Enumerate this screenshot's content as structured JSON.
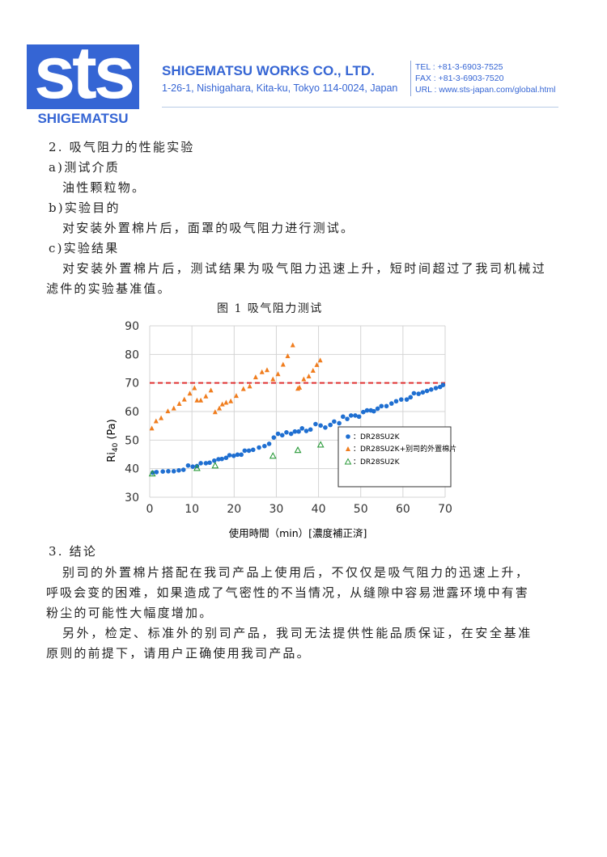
{
  "header": {
    "logo_text": "sts",
    "logo_name": "SHIGEMATSU",
    "company": "SHIGEMATSU WORKS CO., LTD.",
    "address": "1-26-1, Nishigahara, Kita-ku, Tokyo 114-0024, Japan",
    "tel": "TEL : +81-3-6903-7525",
    "fax": "FAX : +81-3-6903-7520",
    "url": "URL : www.sts-japan.com/global.html",
    "brand_color": "#3565d4"
  },
  "body": {
    "lines": [
      "2. 吸气阻力的性能实验",
      "a)测试介质",
      "油性颗粒物。",
      "b)实验目的",
      "对安装外置棉片后，面罩的吸气阻力进行测试。",
      "c)实验结果",
      "对安装外置棉片后，测试结果为吸气阻力迅速上升，短时间超过了我司机械过",
      "滤件的实验基准值。"
    ],
    "figure_caption": "图 1  吸气阻力测试",
    "conclusion_lines": [
      "3. 结论",
      "别司的外置棉片搭配在我司产品上使用后，不仅仅是吸气阻力的迅速上升，",
      "呼吸会变的困难，如果造成了气密性的不当情况，从缝隙中容易泄露环境中有害",
      "粉尘的可能性大幅度增加。",
      "另外，检定、标准外的别司产品，我司无法提供性能品质保证，在安全基准",
      "原则的前提下，请用户正确使用我司产品。"
    ]
  },
  "chart_data": {
    "type": "scatter",
    "title": "图 1  吸气阻力测试",
    "xlabel": "使用時間（min）[濃度補正済]",
    "ylabel": "Ri",
    "ylabel_sub": "40",
    "ylabel_unit": "(Pa)",
    "xlim": [
      0,
      70
    ],
    "ylim": [
      30,
      90
    ],
    "xticks": [
      0,
      10,
      20,
      30,
      40,
      50,
      60,
      70
    ],
    "yticks": [
      30,
      40,
      50,
      60,
      70,
      80,
      90
    ],
    "grid": true,
    "legend_position": "bottom-right",
    "reference_line": {
      "y": 70,
      "color": "#e03030",
      "style": "dashed"
    },
    "series": [
      {
        "name": "：DR28SU2K",
        "marker": "circle",
        "color": "#1f6fd1",
        "points": [
          [
            0.7,
            38.6
          ],
          [
            1.6,
            38.8
          ],
          [
            3.1,
            39
          ],
          [
            4.4,
            39.1
          ],
          [
            5.7,
            39.1
          ],
          [
            6.9,
            39.4
          ],
          [
            8,
            39.6
          ],
          [
            9.1,
            41.1
          ],
          [
            10.2,
            40.7
          ],
          [
            11.2,
            40.9
          ],
          [
            12.1,
            41.9
          ],
          [
            13.3,
            41.9
          ],
          [
            14.2,
            42.1
          ],
          [
            15.3,
            42.8
          ],
          [
            16.3,
            43.3
          ],
          [
            17.1,
            43.4
          ],
          [
            18.1,
            43.8
          ],
          [
            18.9,
            44.7
          ],
          [
            19.9,
            44.5
          ],
          [
            20.8,
            44.9
          ],
          [
            21.7,
            44.9
          ],
          [
            22.5,
            46.3
          ],
          [
            23.5,
            46.3
          ],
          [
            24.5,
            46.6
          ],
          [
            25.9,
            47.4
          ],
          [
            27.2,
            47.9
          ],
          [
            28.3,
            48.7
          ],
          [
            29.4,
            50.9
          ],
          [
            30.4,
            52.2
          ],
          [
            31.4,
            51.7
          ],
          [
            32.4,
            52.7
          ],
          [
            33.5,
            52.2
          ],
          [
            34.4,
            53
          ],
          [
            35.3,
            53
          ],
          [
            36.1,
            54.1
          ],
          [
            37.1,
            53.2
          ],
          [
            38.1,
            53.7
          ],
          [
            39.3,
            55.6
          ],
          [
            40.5,
            55.1
          ],
          [
            41.6,
            54.4
          ],
          [
            42.8,
            55.3
          ],
          [
            43.7,
            56.5
          ],
          [
            44.9,
            55.9
          ],
          [
            45.8,
            58.2
          ],
          [
            46.8,
            57.4
          ],
          [
            47.7,
            58.6
          ],
          [
            48.7,
            58.6
          ],
          [
            49.6,
            58.2
          ],
          [
            50.6,
            59.8
          ],
          [
            51.5,
            60.4
          ],
          [
            52.4,
            60.4
          ],
          [
            53.1,
            60.1
          ],
          [
            54,
            61
          ],
          [
            54.9,
            61.9
          ],
          [
            56.1,
            61.9
          ],
          [
            57.3,
            62.8
          ],
          [
            58.4,
            63.6
          ],
          [
            59.6,
            64.2
          ],
          [
            60.9,
            64.2
          ],
          [
            61.8,
            65
          ],
          [
            62.6,
            66.4
          ],
          [
            63.7,
            66.2
          ],
          [
            64.7,
            66.7
          ],
          [
            65.7,
            67.2
          ],
          [
            66.7,
            67.7
          ],
          [
            67.8,
            68.2
          ],
          [
            68.8,
            68.6
          ],
          [
            69.5,
            69.3
          ]
        ]
      },
      {
        "name": "：DR28SU2K+别司的外置棉片",
        "marker": "triangle-filled",
        "color": "#f07d1e",
        "points": [
          [
            0.5,
            54.1
          ],
          [
            1.5,
            56.6
          ],
          [
            2.7,
            57.7
          ],
          [
            4.3,
            60.1
          ],
          [
            5.7,
            61.1
          ],
          [
            7,
            62.7
          ],
          [
            8.2,
            64.2
          ],
          [
            9.5,
            66.3
          ],
          [
            10.6,
            68.2
          ],
          [
            11.2,
            63.9
          ],
          [
            12.1,
            63.9
          ],
          [
            13.3,
            65.3
          ],
          [
            14.5,
            67.4
          ],
          [
            15.5,
            59.8
          ],
          [
            16.5,
            61.1
          ],
          [
            17.2,
            62.5
          ],
          [
            18.1,
            63.1
          ],
          [
            19.2,
            63.6
          ],
          [
            20.5,
            65.5
          ],
          [
            22.2,
            67.9
          ],
          [
            23.7,
            68.8
          ],
          [
            25.1,
            72
          ],
          [
            26.6,
            73.8
          ],
          [
            27.8,
            74.5
          ],
          [
            29.2,
            71.3
          ],
          [
            30.4,
            73.1
          ],
          [
            31.6,
            76.4
          ],
          [
            32.7,
            79.4
          ],
          [
            33.9,
            83.2
          ],
          [
            35.1,
            68
          ],
          [
            35.5,
            68.4
          ],
          [
            36.5,
            71.3
          ],
          [
            37.7,
            72.3
          ],
          [
            38.7,
            74.3
          ],
          [
            39.6,
            76.3
          ],
          [
            40.4,
            77.9
          ]
        ]
      },
      {
        "name": "：DR28SU2K",
        "marker": "triangle-open",
        "color": "#2a9a3a",
        "points": [
          [
            0.6,
            38.3
          ],
          [
            11.2,
            40.2
          ],
          [
            15.5,
            41.1
          ],
          [
            29.2,
            44.5
          ],
          [
            35.1,
            46.5
          ],
          [
            40.5,
            48.4
          ]
        ]
      }
    ]
  }
}
